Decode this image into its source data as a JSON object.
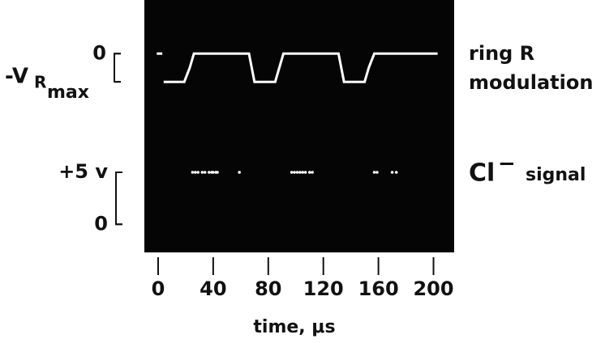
{
  "chart_data": [
    {
      "type": "line",
      "label_lines": [
        "ring R",
        "modulation"
      ],
      "yticks": [
        {
          "value": 0,
          "label": "0"
        },
        {
          "value": -1,
          "label": "-V",
          "sub": "R",
          "subsub": "max"
        }
      ],
      "ylim": [
        -2.4,
        1.9
      ],
      "xlim": [
        -10,
        215
      ],
      "color": "#ffffff",
      "x": [
        -1,
        3,
        4,
        4,
        19,
        23,
        26,
        66,
        70,
        85,
        88,
        91,
        131,
        135,
        150,
        153,
        157,
        203
      ],
      "values": [
        0,
        0,
        null,
        -1,
        -1,
        -0.5,
        0,
        0,
        -1,
        -1,
        -0.5,
        0,
        0,
        -1,
        -1,
        -0.5,
        0,
        0
      ]
    },
    {
      "type": "scatter",
      "label_parts": [
        "Cl",
        "−",
        "signal"
      ],
      "yticks": [
        {
          "value": 5,
          "label": "+5 v"
        },
        {
          "value": 0,
          "label": "0"
        }
      ],
      "ylim": [
        -2.7,
        9.9
      ],
      "xlim": [
        -10,
        215
      ],
      "color": "#ffffff",
      "x": [
        25,
        27,
        29,
        32,
        34,
        37,
        39,
        40,
        42,
        43,
        59,
        97,
        99,
        101,
        103,
        105,
        107,
        110,
        112,
        157,
        159,
        170,
        173
      ],
      "values": [
        5,
        5,
        5,
        5,
        5,
        5,
        5,
        5,
        5,
        5,
        5,
        5,
        5,
        5,
        5,
        5,
        5,
        5,
        5,
        5,
        5,
        5,
        5
      ],
      "xticks": [
        0,
        40,
        80,
        120,
        160,
        200
      ],
      "xlabel": "time, μs"
    }
  ]
}
